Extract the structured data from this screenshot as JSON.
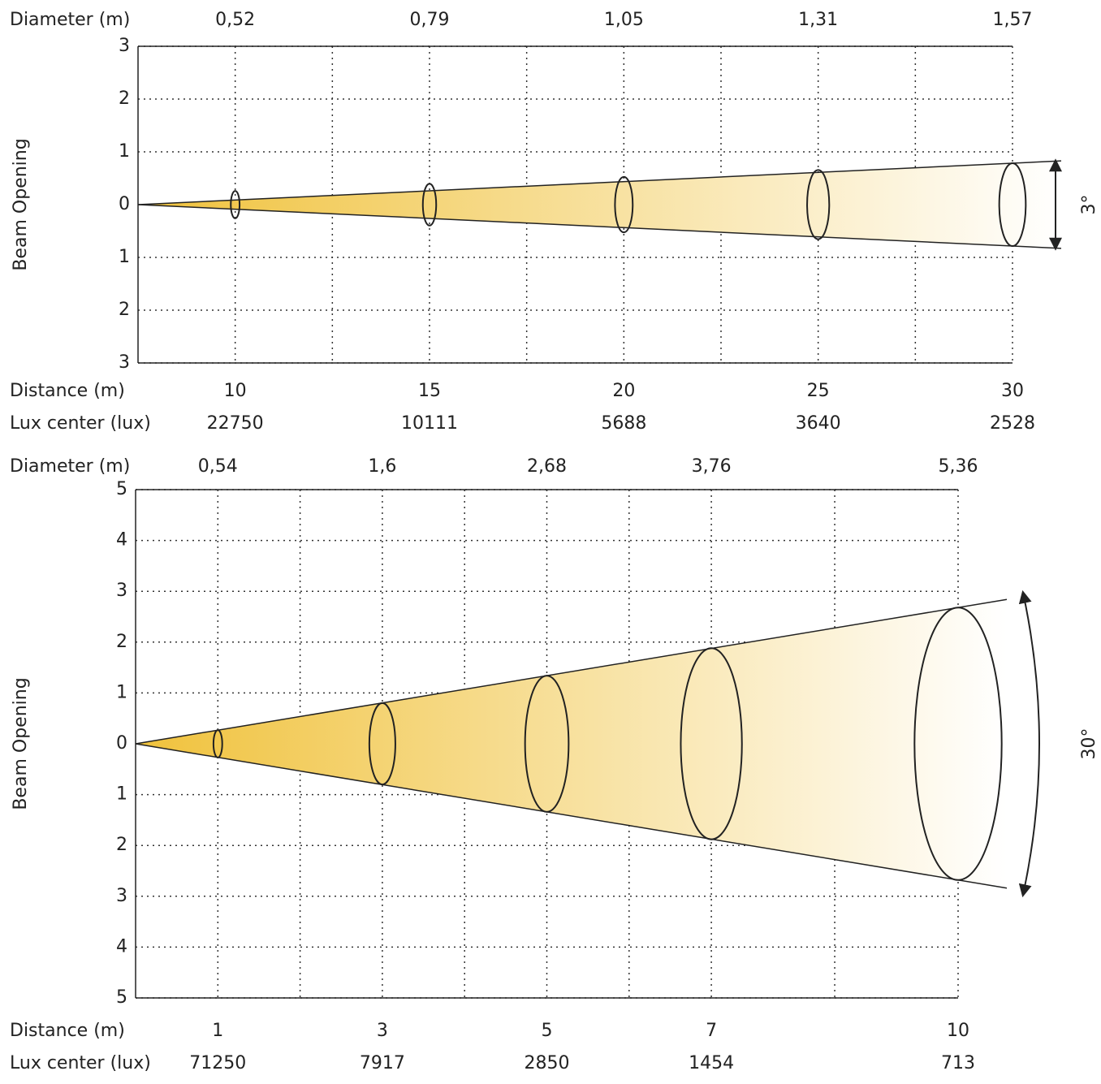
{
  "chart_data": [
    {
      "type": "beam",
      "y_label": "Beam Opening",
      "diameter_label": "Diameter (m)",
      "diameters": [
        0.52,
        0.79,
        1.05,
        1.31,
        1.57
      ],
      "value_labels": [
        "0,52",
        "0,79",
        "1,05",
        "1,31",
        "1,57"
      ],
      "distance_label": "Distance (m)",
      "x": [
        10,
        15,
        20,
        25,
        30
      ],
      "xlim": [
        7.5,
        30
      ],
      "lux_label": "Lux center (lux)",
      "lux": [
        22750,
        10111,
        5688,
        3640,
        2528
      ],
      "ylim": [
        -3,
        3
      ],
      "yticks": [
        3,
        2,
        1,
        0,
        {
          "value": -1,
          "label": "1"
        },
        {
          "value": -2,
          "label": "2"
        },
        {
          "value": -3,
          "label": "3"
        }
      ],
      "angle_label": "3°",
      "color": "#f0c23c",
      "grid": true
    },
    {
      "type": "beam",
      "y_label": "Beam Opening",
      "diameter_label": "Diameter (m)",
      "diameters": [
        0.54,
        1.6,
        2.68,
        3.76,
        5.36
      ],
      "value_labels": [
        "0,54",
        "1,6",
        "2,68",
        "3,76",
        "5,36"
      ],
      "distance_label": "Distance (m)",
      "x": [
        1,
        3,
        5,
        7,
        10
      ],
      "xlim": [
        0,
        10
      ],
      "lux_label": "Lux center (lux)",
      "lux": [
        71250,
        7917,
        2850,
        1454,
        713
      ],
      "ylim": [
        -5,
        5
      ],
      "yticks": [
        5,
        4,
        3,
        2,
        1,
        0,
        {
          "value": -1,
          "label": "1"
        },
        {
          "value": -2,
          "label": "2"
        },
        {
          "value": -3,
          "label": "3"
        },
        {
          "value": -4,
          "label": "4"
        },
        {
          "value": -5,
          "label": "5"
        }
      ],
      "angle_label": "30°",
      "color": "#f0c23c",
      "grid": true
    }
  ]
}
